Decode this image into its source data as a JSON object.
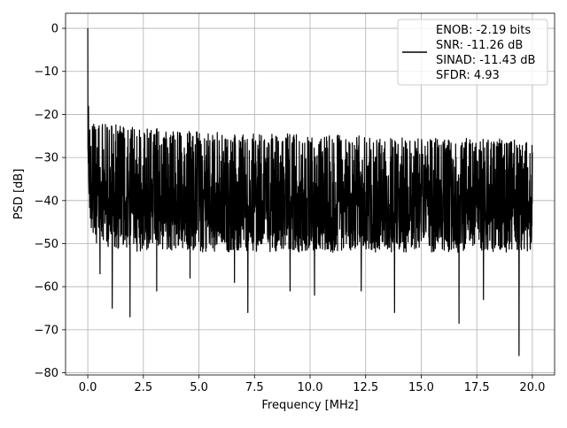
{
  "chart_data": {
    "type": "line",
    "title": "",
    "xlabel": "Frequency [MHz]",
    "ylabel": "PSD [dB]",
    "xlim": [
      -1.0,
      21.0
    ],
    "ylim": [
      -80.5,
      3.5
    ],
    "x_ticks": [
      0.0,
      2.5,
      5.0,
      7.5,
      10.0,
      12.5,
      15.0,
      17.5,
      20.0
    ],
    "x_tick_labels": [
      "0.0",
      "2.5",
      "5.0",
      "7.5",
      "10.0",
      "12.5",
      "15.0",
      "17.5",
      "20.0"
    ],
    "y_ticks": [
      0,
      -10,
      -20,
      -30,
      -40,
      -50,
      -60,
      -70,
      -80
    ],
    "y_tick_labels": [
      "0",
      "−10",
      "−20",
      "−30",
      "−40",
      "−50",
      "−60",
      "−70",
      "−80"
    ],
    "grid": true,
    "legend_position": "top-right",
    "series": [
      {
        "name": "ENOB: -2.19 bits\nSNR: -11.26 dB\nSINAD: -11.43 dB\nSFDR: 4.93",
        "legend_lines": [
          "ENOB: -2.19 bits",
          "SNR: -11.26 dB",
          "SINAD: -11.43 dB",
          "SFDR: 4.93"
        ],
        "color": "#000000",
        "peak": {
          "x": 0.0,
          "y": 0.0
        },
        "x": [
          0.0,
          0.05,
          0.1,
          0.2,
          0.4,
          1.0,
          2.5,
          5.0,
          7.5,
          10.0,
          12.5,
          15.0,
          17.5,
          20.0
        ],
        "upper_envelope": [
          0.0,
          -12.0,
          -18.0,
          -21.0,
          -22.0,
          -22.0,
          -23.0,
          -24.0,
          -24.5,
          -24.5,
          -25.0,
          -25.5,
          -25.5,
          -26.0
        ],
        "lower_envelope": [
          -35.0,
          -42.0,
          -45.0,
          -48.0,
          -50.0,
          -51.0,
          -52.0,
          -52.0,
          -52.0,
          -52.0,
          -52.0,
          -52.0,
          -52.0,
          -52.0
        ],
        "deep_dips": [
          {
            "x": 0.55,
            "y": -57.0
          },
          {
            "x": 1.1,
            "y": -65.0
          },
          {
            "x": 1.9,
            "y": -67.0
          },
          {
            "x": 3.1,
            "y": -61.0
          },
          {
            "x": 4.6,
            "y": -58.0
          },
          {
            "x": 6.6,
            "y": -59.0
          },
          {
            "x": 7.2,
            "y": -66.0
          },
          {
            "x": 9.1,
            "y": -61.0
          },
          {
            "x": 10.2,
            "y": -62.0
          },
          {
            "x": 12.3,
            "y": -61.0
          },
          {
            "x": 13.8,
            "y": -66.0
          },
          {
            "x": 16.7,
            "y": -68.5
          },
          {
            "x": 17.8,
            "y": -63.0
          },
          {
            "x": 19.4,
            "y": -76.0
          }
        ]
      }
    ]
  }
}
